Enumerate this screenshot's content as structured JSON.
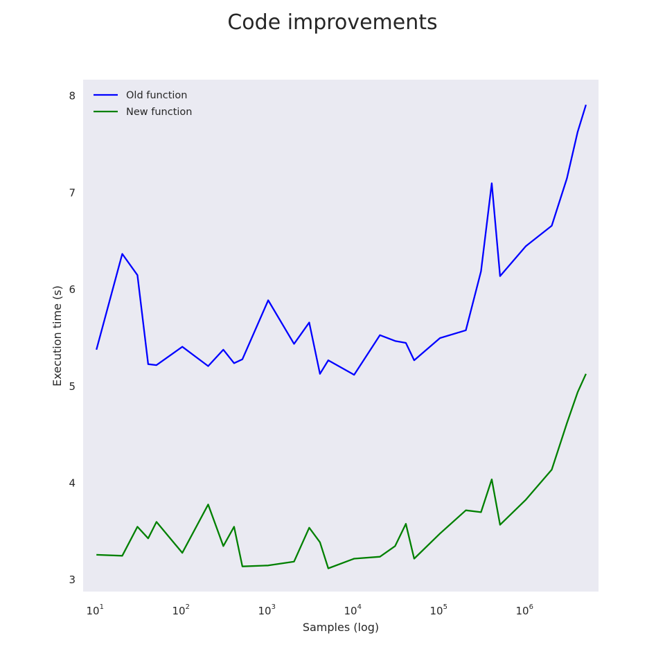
{
  "chart_data": {
    "type": "line",
    "title": "Code improvements",
    "xlabel": "Samples (log)",
    "ylabel": "Execution time (s)",
    "xscale": "log",
    "xlim": [
      7,
      7000000
    ],
    "ylim": [
      2.88,
      8.17
    ],
    "grid": false,
    "legend_placement": "top-left",
    "x": [
      10,
      20,
      30,
      40,
      50,
      100,
      200,
      300,
      400,
      500,
      1000,
      2000,
      3000,
      4000,
      5000,
      10000,
      20000,
      30000,
      40000,
      50000,
      100000,
      200000,
      300000,
      400000,
      500000,
      1000000,
      2000000,
      3000000,
      4000000,
      5000000
    ],
    "x_ticks": [
      {
        "value": 10,
        "base": "10",
        "exp": "1"
      },
      {
        "value": 100,
        "base": "10",
        "exp": "2"
      },
      {
        "value": 1000,
        "base": "10",
        "exp": "3"
      },
      {
        "value": 10000,
        "base": "10",
        "exp": "4"
      },
      {
        "value": 100000,
        "base": "10",
        "exp": "5"
      },
      {
        "value": 1000000,
        "base": "10",
        "exp": "6"
      }
    ],
    "y_ticks": [
      {
        "value": 3,
        "label": "3"
      },
      {
        "value": 4,
        "label": "4"
      },
      {
        "value": 5,
        "label": "5"
      },
      {
        "value": 6,
        "label": "6"
      },
      {
        "value": 7,
        "label": "7"
      },
      {
        "value": 8,
        "label": "8"
      }
    ],
    "series": [
      {
        "name": "Old function",
        "color": "#0000ff",
        "values": [
          5.38,
          6.37,
          6.15,
          5.23,
          5.22,
          5.41,
          5.21,
          5.38,
          5.24,
          5.28,
          5.89,
          5.44,
          5.66,
          5.13,
          5.27,
          5.12,
          5.53,
          5.47,
          5.45,
          5.27,
          5.5,
          5.58,
          6.19,
          7.1,
          6.14,
          6.45,
          6.66,
          7.15,
          7.63,
          7.91
        ]
      },
      {
        "name": "New function",
        "color": "#008000",
        "values": [
          3.26,
          3.25,
          3.55,
          3.43,
          3.6,
          3.28,
          3.78,
          3.35,
          3.55,
          3.14,
          3.15,
          3.19,
          3.54,
          3.39,
          3.12,
          3.22,
          3.24,
          3.35,
          3.58,
          3.22,
          3.48,
          3.72,
          3.7,
          4.04,
          3.57,
          3.83,
          4.14,
          4.62,
          4.94,
          5.13
        ]
      }
    ]
  }
}
